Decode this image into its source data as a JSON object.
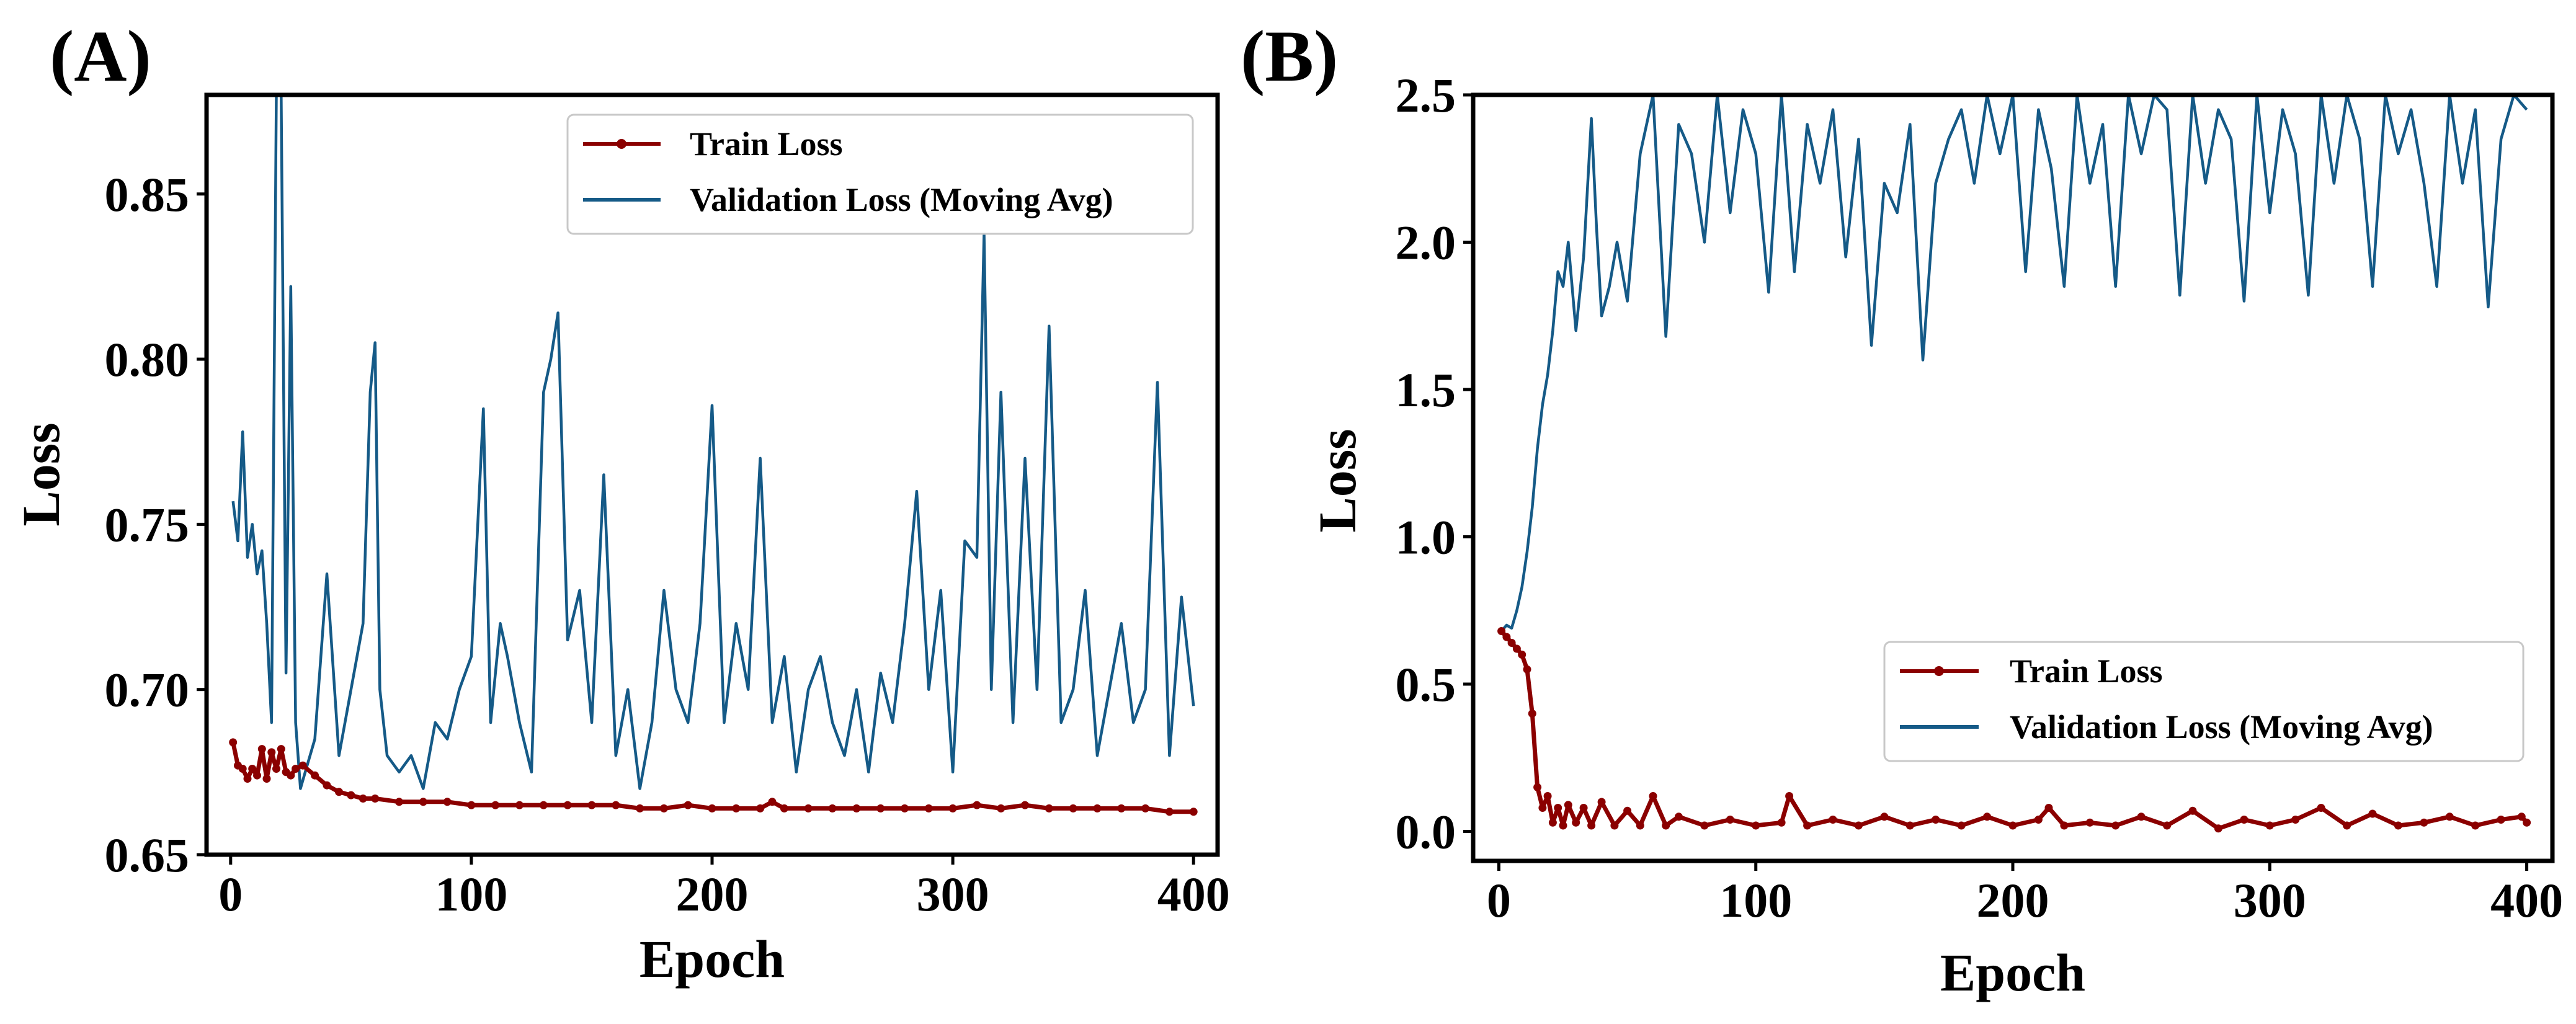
{
  "colors": {
    "train": "#8b0000",
    "validation": "#155a87",
    "axis": "#000000"
  },
  "chart_data": [
    {
      "panel": "(A)",
      "type": "line",
      "xlabel": "Epoch",
      "ylabel": "Loss",
      "xlim": [
        -10,
        410
      ],
      "ylim": [
        0.65,
        0.88
      ],
      "xticks": [
        0,
        100,
        200,
        300,
        400
      ],
      "xtick_labels": [
        "0",
        "100",
        "200",
        "300",
        "400"
      ],
      "yticks": [
        0.65,
        0.7,
        0.75,
        0.8,
        0.85
      ],
      "ytick_labels": [
        "0.65",
        "0.70",
        "0.75",
        "0.80",
        "0.85"
      ],
      "legend_position": "top-right",
      "series": [
        {
          "name": "Train Loss",
          "marker": "dot",
          "x": [
            1,
            3,
            5,
            7,
            9,
            11,
            13,
            15,
            17,
            19,
            21,
            23,
            25,
            27,
            30,
            35,
            40,
            45,
            50,
            55,
            60,
            70,
            80,
            90,
            100,
            110,
            120,
            130,
            140,
            150,
            160,
            170,
            180,
            190,
            200,
            210,
            220,
            225,
            230,
            240,
            250,
            260,
            270,
            280,
            290,
            300,
            310,
            320,
            330,
            340,
            350,
            360,
            370,
            380,
            390,
            400
          ],
          "y": [
            0.684,
            0.677,
            0.676,
            0.673,
            0.676,
            0.674,
            0.682,
            0.673,
            0.681,
            0.676,
            0.682,
            0.675,
            0.674,
            0.676,
            0.677,
            0.674,
            0.671,
            0.669,
            0.668,
            0.667,
            0.667,
            0.666,
            0.666,
            0.666,
            0.665,
            0.665,
            0.665,
            0.665,
            0.665,
            0.665,
            0.665,
            0.664,
            0.664,
            0.665,
            0.664,
            0.664,
            0.664,
            0.666,
            0.664,
            0.664,
            0.664,
            0.664,
            0.664,
            0.664,
            0.664,
            0.664,
            0.665,
            0.664,
            0.665,
            0.664,
            0.664,
            0.664,
            0.664,
            0.664,
            0.663,
            0.663
          ]
        },
        {
          "name": "Validation Loss (Moving Avg)",
          "marker": "none",
          "x": [
            1,
            3,
            5,
            7,
            9,
            11,
            13,
            15,
            17,
            19,
            21,
            23,
            25,
            27,
            29,
            31,
            35,
            40,
            45,
            50,
            55,
            58,
            60,
            62,
            65,
            70,
            75,
            80,
            85,
            90,
            95,
            100,
            105,
            108,
            112,
            115,
            120,
            125,
            130,
            133,
            136,
            140,
            145,
            150,
            155,
            160,
            165,
            170,
            175,
            180,
            185,
            190,
            195,
            200,
            205,
            210,
            215,
            220,
            225,
            230,
            235,
            240,
            245,
            250,
            255,
            260,
            265,
            270,
            275,
            280,
            285,
            290,
            295,
            300,
            305,
            310,
            313,
            316,
            320,
            325,
            330,
            335,
            340,
            345,
            350,
            355,
            360,
            365,
            370,
            375,
            380,
            385,
            390,
            395,
            400
          ],
          "y": [
            0.757,
            0.745,
            0.778,
            0.74,
            0.75,
            0.735,
            0.742,
            0.72,
            0.69,
            0.88,
            0.88,
            0.705,
            0.822,
            0.69,
            0.67,
            0.675,
            0.685,
            0.735,
            0.68,
            0.7,
            0.72,
            0.79,
            0.805,
            0.7,
            0.68,
            0.675,
            0.68,
            0.67,
            0.69,
            0.685,
            0.7,
            0.71,
            0.785,
            0.69,
            0.72,
            0.71,
            0.69,
            0.675,
            0.79,
            0.8,
            0.814,
            0.715,
            0.73,
            0.69,
            0.765,
            0.68,
            0.7,
            0.67,
            0.69,
            0.73,
            0.7,
            0.69,
            0.72,
            0.786,
            0.69,
            0.72,
            0.7,
            0.77,
            0.69,
            0.71,
            0.675,
            0.7,
            0.71,
            0.69,
            0.68,
            0.7,
            0.675,
            0.705,
            0.69,
            0.72,
            0.76,
            0.7,
            0.73,
            0.675,
            0.745,
            0.74,
            0.838,
            0.7,
            0.79,
            0.69,
            0.77,
            0.7,
            0.81,
            0.69,
            0.7,
            0.73,
            0.68,
            0.7,
            0.72,
            0.69,
            0.7,
            0.793,
            0.68,
            0.728,
            0.695
          ]
        }
      ]
    },
    {
      "panel": "(B)",
      "type": "line",
      "xlabel": "Epoch",
      "ylabel": "Loss",
      "xlim": [
        -10,
        410
      ],
      "ylim": [
        -0.1,
        2.5
      ],
      "xticks": [
        0,
        100,
        200,
        300,
        400
      ],
      "xtick_labels": [
        "0",
        "100",
        "200",
        "300",
        "400"
      ],
      "yticks": [
        0.0,
        0.5,
        1.0,
        1.5,
        2.0,
        2.5
      ],
      "ytick_labels": [
        "0.0",
        "0.5",
        "1.0",
        "1.5",
        "2.0",
        "2.5"
      ],
      "legend_position": "center-right",
      "series": [
        {
          "name": "Train Loss",
          "marker": "dot",
          "x": [
            1,
            3,
            5,
            7,
            9,
            11,
            13,
            15,
            17,
            19,
            21,
            23,
            25,
            27,
            30,
            33,
            36,
            40,
            45,
            50,
            55,
            60,
            65,
            70,
            80,
            90,
            100,
            110,
            113,
            120,
            130,
            140,
            150,
            160,
            170,
            180,
            190,
            200,
            210,
            214,
            220,
            230,
            240,
            250,
            260,
            270,
            280,
            290,
            300,
            310,
            320,
            330,
            340,
            350,
            360,
            370,
            380,
            390,
            398,
            400
          ],
          "y": [
            0.68,
            0.66,
            0.64,
            0.62,
            0.6,
            0.55,
            0.4,
            0.15,
            0.08,
            0.12,
            0.03,
            0.08,
            0.02,
            0.09,
            0.03,
            0.08,
            0.02,
            0.1,
            0.02,
            0.07,
            0.02,
            0.12,
            0.02,
            0.05,
            0.02,
            0.04,
            0.02,
            0.03,
            0.12,
            0.02,
            0.04,
            0.02,
            0.05,
            0.02,
            0.04,
            0.02,
            0.05,
            0.02,
            0.04,
            0.08,
            0.02,
            0.03,
            0.02,
            0.05,
            0.02,
            0.07,
            0.01,
            0.04,
            0.02,
            0.04,
            0.08,
            0.02,
            0.06,
            0.02,
            0.03,
            0.05,
            0.02,
            0.04,
            0.05,
            0.03
          ]
        },
        {
          "name": "Validation Loss (Moving Avg)",
          "marker": "none",
          "x": [
            1,
            3,
            5,
            7,
            9,
            11,
            13,
            15,
            17,
            19,
            21,
            23,
            25,
            27,
            30,
            33,
            36,
            38,
            40,
            43,
            46,
            50,
            55,
            60,
            65,
            70,
            75,
            80,
            85,
            90,
            95,
            100,
            105,
            110,
            115,
            120,
            125,
            130,
            135,
            140,
            145,
            150,
            155,
            160,
            165,
            170,
            175,
            180,
            185,
            190,
            195,
            200,
            205,
            210,
            215,
            220,
            225,
            230,
            235,
            240,
            245,
            250,
            255,
            260,
            265,
            270,
            275,
            280,
            285,
            290,
            295,
            300,
            305,
            310,
            315,
            320,
            325,
            330,
            335,
            340,
            345,
            350,
            355,
            360,
            365,
            370,
            375,
            380,
            385,
            390,
            395,
            400
          ],
          "y": [
            0.68,
            0.7,
            0.69,
            0.75,
            0.83,
            0.95,
            1.1,
            1.3,
            1.45,
            1.55,
            1.7,
            1.9,
            1.85,
            2.0,
            1.7,
            1.95,
            2.42,
            2.05,
            1.75,
            1.85,
            2.0,
            1.8,
            2.3,
            2.5,
            1.68,
            2.4,
            2.3,
            2.0,
            2.5,
            2.1,
            2.45,
            2.3,
            1.83,
            2.5,
            1.9,
            2.4,
            2.2,
            2.45,
            1.95,
            2.35,
            1.65,
            2.2,
            2.1,
            2.4,
            1.6,
            2.2,
            2.35,
            2.45,
            2.2,
            2.5,
            2.3,
            2.5,
            1.9,
            2.45,
            2.25,
            1.85,
            2.5,
            2.2,
            2.4,
            1.85,
            2.5,
            2.3,
            2.5,
            2.45,
            1.82,
            2.5,
            2.2,
            2.45,
            2.35,
            1.8,
            2.5,
            2.1,
            2.45,
            2.3,
            1.82,
            2.5,
            2.2,
            2.5,
            2.35,
            1.85,
            2.5,
            2.3,
            2.45,
            2.2,
            1.85,
            2.5,
            2.2,
            2.45,
            1.78,
            2.35,
            2.5,
            2.45
          ]
        }
      ]
    }
  ]
}
